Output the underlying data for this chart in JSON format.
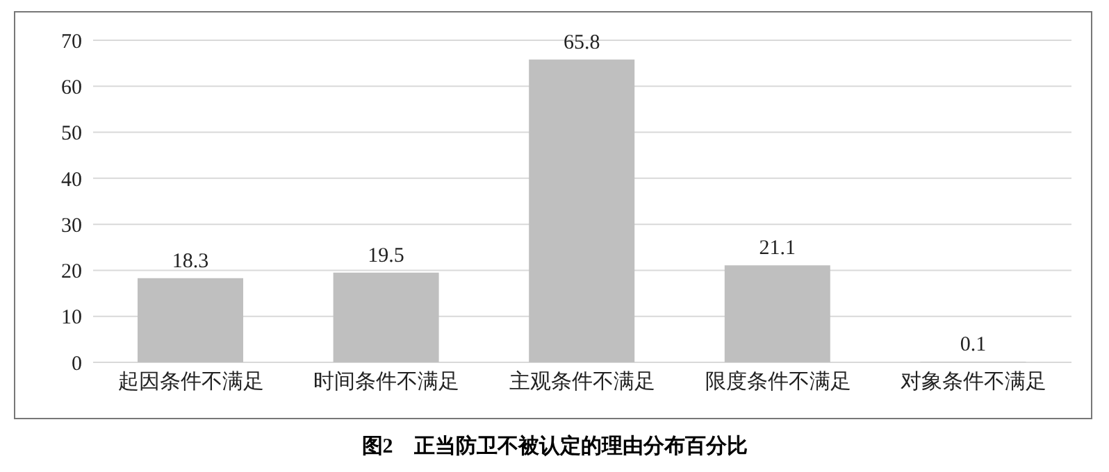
{
  "chart_data": {
    "type": "bar",
    "title": "图2　正当防卫不被认定的理由分布百分比",
    "categories": [
      "起因条件不满足",
      "时间条件不满足",
      "主观条件不满足",
      "限度条件不满足",
      "对象条件不满足"
    ],
    "values": [
      18.3,
      19.5,
      65.8,
      21.1,
      0.1
    ],
    "color": "#bfbfbf",
    "ylim": [
      0,
      70
    ],
    "yticks": [
      0,
      10,
      20,
      30,
      40,
      50,
      60,
      70
    ],
    "grid": "y",
    "data_labels": true
  }
}
